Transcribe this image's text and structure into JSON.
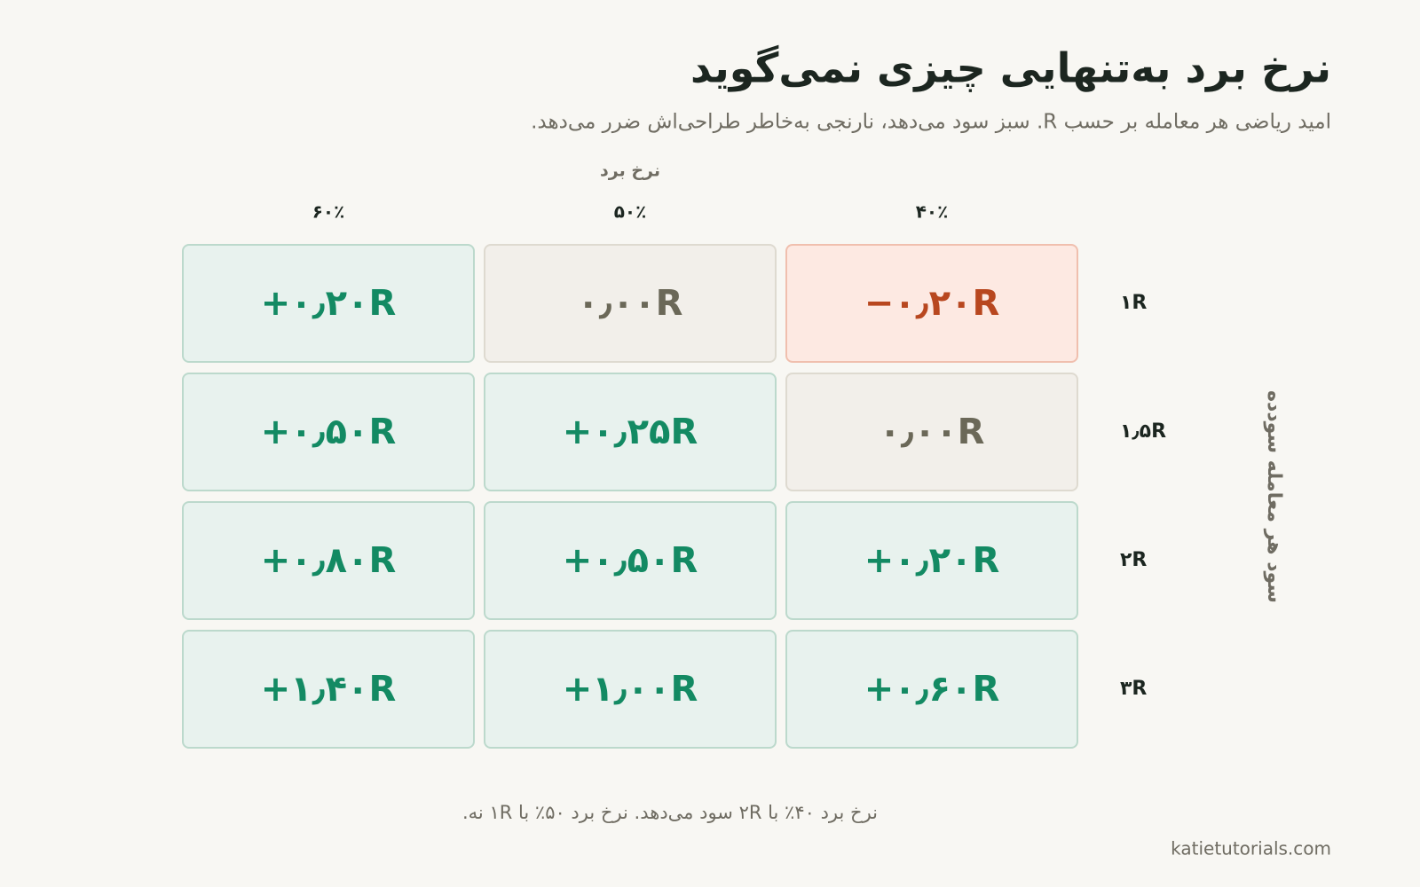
{
  "chart_data": {
    "type": "heatmap",
    "title": "نرخ برد به‌تنهایی چیزی نمی‌گوید",
    "subtitle": "امید ریاضی هر معامله بر حسب R. سبز سود می‌دهد، نارنجی به‌خاطر طراحی‌اش ضرر می‌دهد.",
    "x_label": "نرخ برد",
    "y_label": "سود هر معامله سودده",
    "x_categories": [
      "۴۰٪",
      "۵۰٪",
      "۶۰٪"
    ],
    "y_categories": [
      "۱R",
      "۱٫۵R",
      "۲R",
      "۳R"
    ],
    "values": [
      [
        -0.2,
        0.0,
        0.2
      ],
      [
        0.0,
        0.25,
        0.5
      ],
      [
        0.2,
        0.5,
        0.8
      ],
      [
        0.6,
        1.0,
        1.4
      ]
    ],
    "value_labels": [
      [
        "−۰٫۲۰R",
        "۰٫۰۰R",
        "+۰٫۲۰R"
      ],
      [
        "۰٫۰۰R",
        "+۰٫۲۵R",
        "+۰٫۵۰R"
      ],
      [
        "+۰٫۲۰R",
        "+۰٫۵۰R",
        "+۰٫۸۰R"
      ],
      [
        "+۰٫۶۰R",
        "+۱٫۰۰R",
        "+۱٫۴۰R"
      ]
    ],
    "colors": {
      "positive": {
        "text": "#138a63",
        "fill": "#e8f2ee",
        "stroke": "#bcd9cc"
      },
      "zero": {
        "text": "#6b6858",
        "fill": "#f2efea",
        "stroke": "#dedad0"
      },
      "negative": {
        "text": "#b8471f",
        "fill": "#fde9e2",
        "stroke": "#f0bfae"
      }
    },
    "note": "نرخ برد ۴۰٪ با ۲R سود می‌دهد. نرخ برد ۵۰٪ با ۱R نه.",
    "credit": "katietutorials.com"
  }
}
